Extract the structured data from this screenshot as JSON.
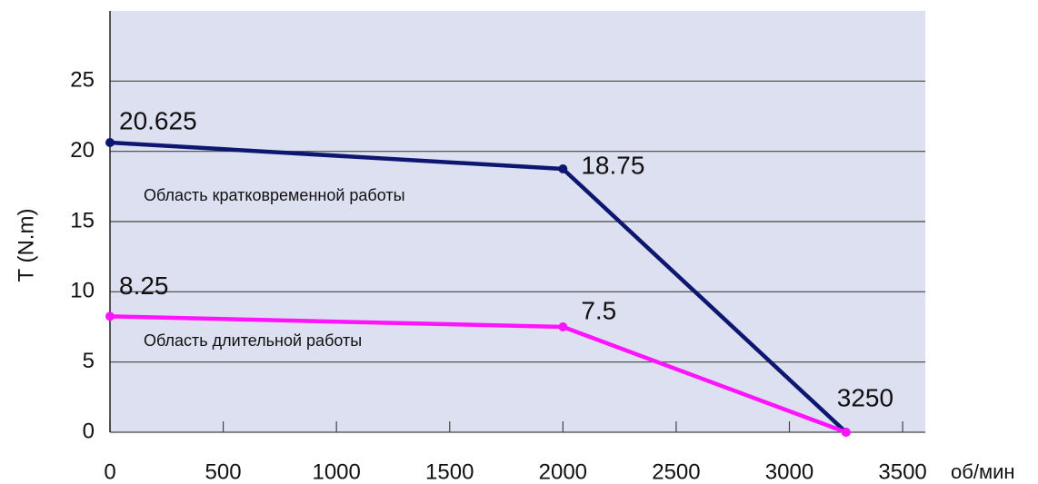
{
  "chart_data": {
    "type": "line",
    "y_label": "T (N.m)",
    "x_label": "об/мин",
    "x": [
      0,
      2000,
      3250
    ],
    "series": [
      {
        "name": "Область кратковременной работы",
        "color": "#0d1770",
        "values": [
          20.625,
          18.75,
          0
        ]
      },
      {
        "name": "Область длительной работы",
        "color": "#ff14ff",
        "values": [
          8.25,
          7.5,
          0
        ]
      }
    ],
    "xlim": [
      0,
      3600
    ],
    "xticks": [
      0,
      500,
      1000,
      1500,
      2000,
      2500,
      3000,
      3500
    ],
    "ylim": [
      0,
      30
    ],
    "yticks": [
      0,
      5,
      10,
      15,
      20,
      25
    ],
    "grid": true,
    "background": "#dde0f1"
  }
}
